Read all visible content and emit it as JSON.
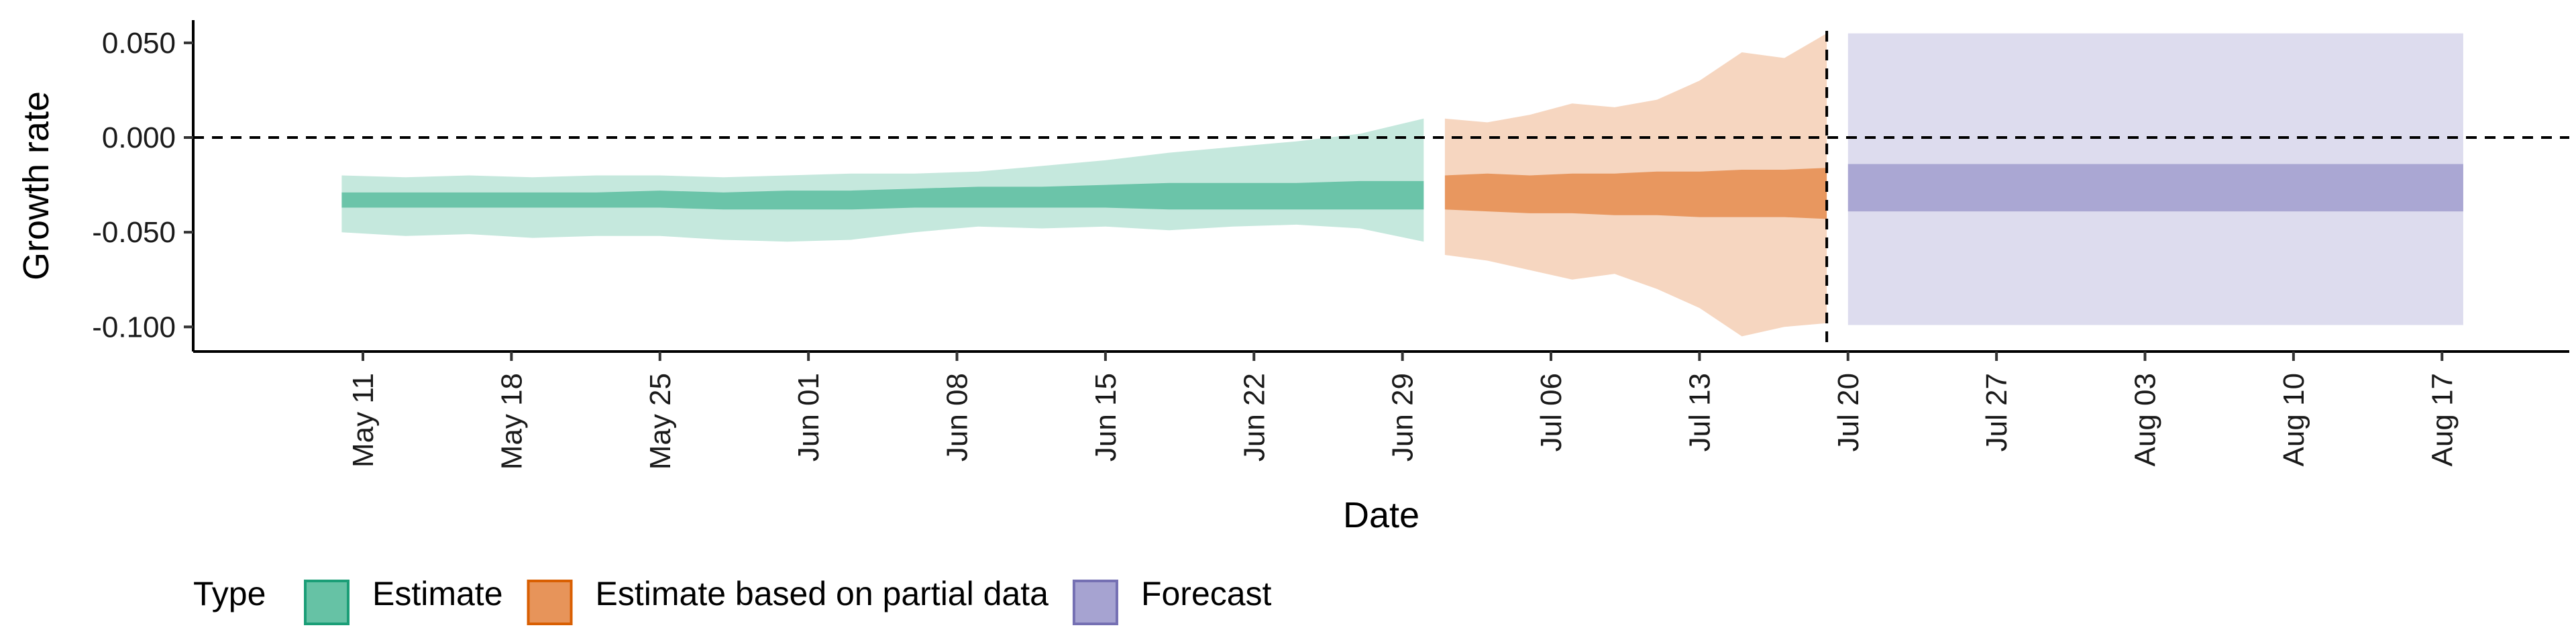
{
  "chart_data": {
    "type": "area",
    "title": "",
    "xlabel": "Date",
    "ylabel": "Growth rate",
    "ylim": [
      -0.113,
      0.062
    ],
    "xlim": [
      "2020-05-03",
      "2020-08-23"
    ],
    "x_ticks": [
      "2020-05-11",
      "2020-05-18",
      "2020-05-25",
      "2020-06-01",
      "2020-06-08",
      "2020-06-15",
      "2020-06-22",
      "2020-06-29",
      "2020-07-06",
      "2020-07-13",
      "2020-07-20",
      "2020-07-27",
      "2020-08-03",
      "2020-08-10",
      "2020-08-17"
    ],
    "x_tick_labels": [
      "May 11",
      "May 18",
      "May 25",
      "Jun 01",
      "Jun 08",
      "Jun 15",
      "Jun 22",
      "Jun 29",
      "Jul 06",
      "Jul 13",
      "Jul 20",
      "Jul 27",
      "Aug 03",
      "Aug 10",
      "Aug 17"
    ],
    "y_ticks": [
      0.05,
      0.0,
      -0.05,
      -0.1
    ],
    "y_tick_labels": [
      "0.050",
      "0.000",
      "-0.050",
      "-0.100"
    ],
    "reference_lines": {
      "horizontal_y": 0.0,
      "vertical_x": "2020-07-19"
    },
    "grid": false,
    "legend": {
      "title": "Type",
      "placement": "bottom-left",
      "entries": [
        "Estimate",
        "Estimate based on partial data",
        "Forecast"
      ]
    },
    "colors": {
      "Estimate": {
        "fill": "#66c2a5",
        "border": "#1b9e77"
      },
      "Estimate based on partial data": {
        "fill": "#e7945a",
        "border": "#d95f02"
      },
      "Forecast": {
        "fill": "#a6a3d1",
        "border": "#7570b3"
      }
    },
    "series": [
      {
        "name": "Estimate",
        "x": [
          "2020-05-10",
          "2020-05-13",
          "2020-05-16",
          "2020-05-19",
          "2020-05-22",
          "2020-05-25",
          "2020-05-28",
          "2020-05-31",
          "2020-06-03",
          "2020-06-06",
          "2020-06-09",
          "2020-06-12",
          "2020-06-15",
          "2020-06-18",
          "2020-06-21",
          "2020-06-24",
          "2020-06-27",
          "2020-06-30"
        ],
        "outer_upper": [
          -0.02,
          -0.021,
          -0.02,
          -0.021,
          -0.02,
          -0.02,
          -0.021,
          -0.02,
          -0.019,
          -0.019,
          -0.018,
          -0.015,
          -0.012,
          -0.008,
          -0.005,
          -0.002,
          0.002,
          0.01
        ],
        "outer_lower": [
          -0.05,
          -0.052,
          -0.051,
          -0.053,
          -0.052,
          -0.052,
          -0.054,
          -0.055,
          -0.054,
          -0.05,
          -0.047,
          -0.048,
          -0.047,
          -0.049,
          -0.047,
          -0.046,
          -0.048,
          -0.055
        ],
        "inner_upper": [
          -0.029,
          -0.029,
          -0.029,
          -0.029,
          -0.029,
          -0.028,
          -0.029,
          -0.028,
          -0.028,
          -0.027,
          -0.026,
          -0.026,
          -0.025,
          -0.024,
          -0.024,
          -0.024,
          -0.023,
          -0.023
        ],
        "inner_lower": [
          -0.037,
          -0.037,
          -0.037,
          -0.037,
          -0.037,
          -0.037,
          -0.038,
          -0.038,
          -0.038,
          -0.037,
          -0.037,
          -0.037,
          -0.037,
          -0.038,
          -0.038,
          -0.038,
          -0.038,
          -0.038
        ]
      },
      {
        "name": "Estimate based on partial data",
        "x": [
          "2020-07-01",
          "2020-07-03",
          "2020-07-05",
          "2020-07-07",
          "2020-07-09",
          "2020-07-11",
          "2020-07-13",
          "2020-07-15",
          "2020-07-17",
          "2020-07-19"
        ],
        "outer_upper": [
          0.01,
          0.008,
          0.012,
          0.018,
          0.016,
          0.02,
          0.03,
          0.045,
          0.042,
          0.055
        ],
        "outer_lower": [
          -0.062,
          -0.065,
          -0.07,
          -0.075,
          -0.072,
          -0.08,
          -0.09,
          -0.105,
          -0.1,
          -0.098
        ],
        "inner_upper": [
          -0.02,
          -0.019,
          -0.02,
          -0.019,
          -0.019,
          -0.018,
          -0.018,
          -0.017,
          -0.017,
          -0.016
        ],
        "inner_lower": [
          -0.038,
          -0.039,
          -0.04,
          -0.04,
          -0.041,
          -0.041,
          -0.042,
          -0.042,
          -0.042,
          -0.043
        ]
      },
      {
        "name": "Forecast",
        "x": [
          "2020-07-20",
          "2020-08-18"
        ],
        "outer_upper": [
          0.055,
          0.055
        ],
        "outer_lower": [
          -0.099,
          -0.099
        ],
        "inner_upper": [
          -0.014,
          -0.014
        ],
        "inner_lower": [
          -0.039,
          -0.039
        ]
      }
    ]
  }
}
